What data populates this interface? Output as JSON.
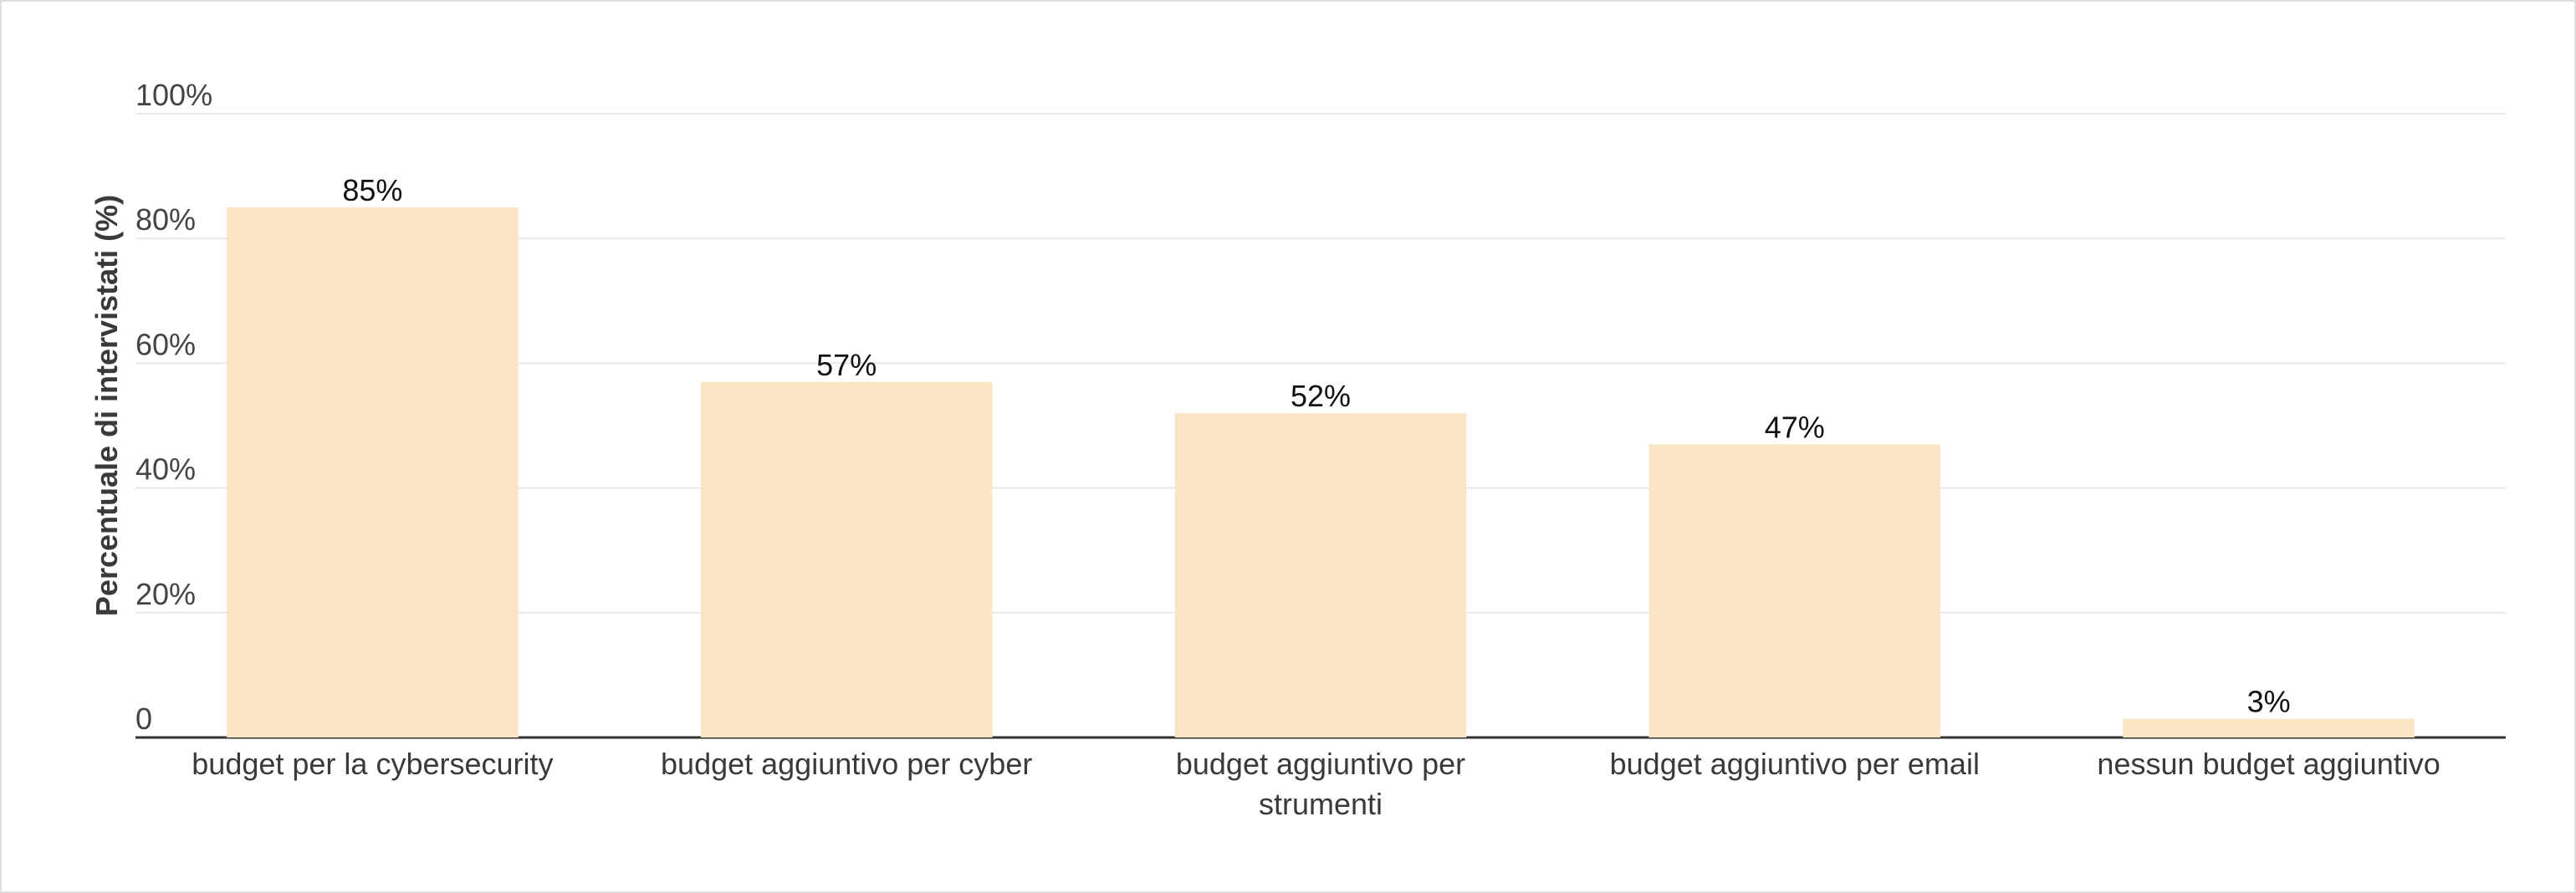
{
  "chart_data": {
    "type": "bar",
    "title": "",
    "xlabel": "",
    "ylabel": "Percentuale di intervistati (%)",
    "ylim": [
      0,
      100
    ],
    "yticks": [
      0,
      20,
      40,
      60,
      80,
      100
    ],
    "ytick_labels": [
      "0",
      "20%",
      "40%",
      "60%",
      "80%",
      "100%"
    ],
    "grid": true,
    "categories": [
      [
        "budget per la cybersecurity"
      ],
      [
        "budget aggiuntivo per cyber"
      ],
      [
        "budget aggiuntivo per",
        "strumenti"
      ],
      [
        "budget aggiuntivo per email"
      ],
      [
        "nessun budget aggiuntivo"
      ]
    ],
    "values": [
      85,
      57,
      52,
      47,
      3
    ],
    "data_labels": [
      "85%",
      "57%",
      "52%",
      "47%",
      "3%"
    ],
    "colors": {
      "bar": "#fce5c5",
      "grid": "#e8e8e8",
      "axis": "#333333"
    }
  }
}
